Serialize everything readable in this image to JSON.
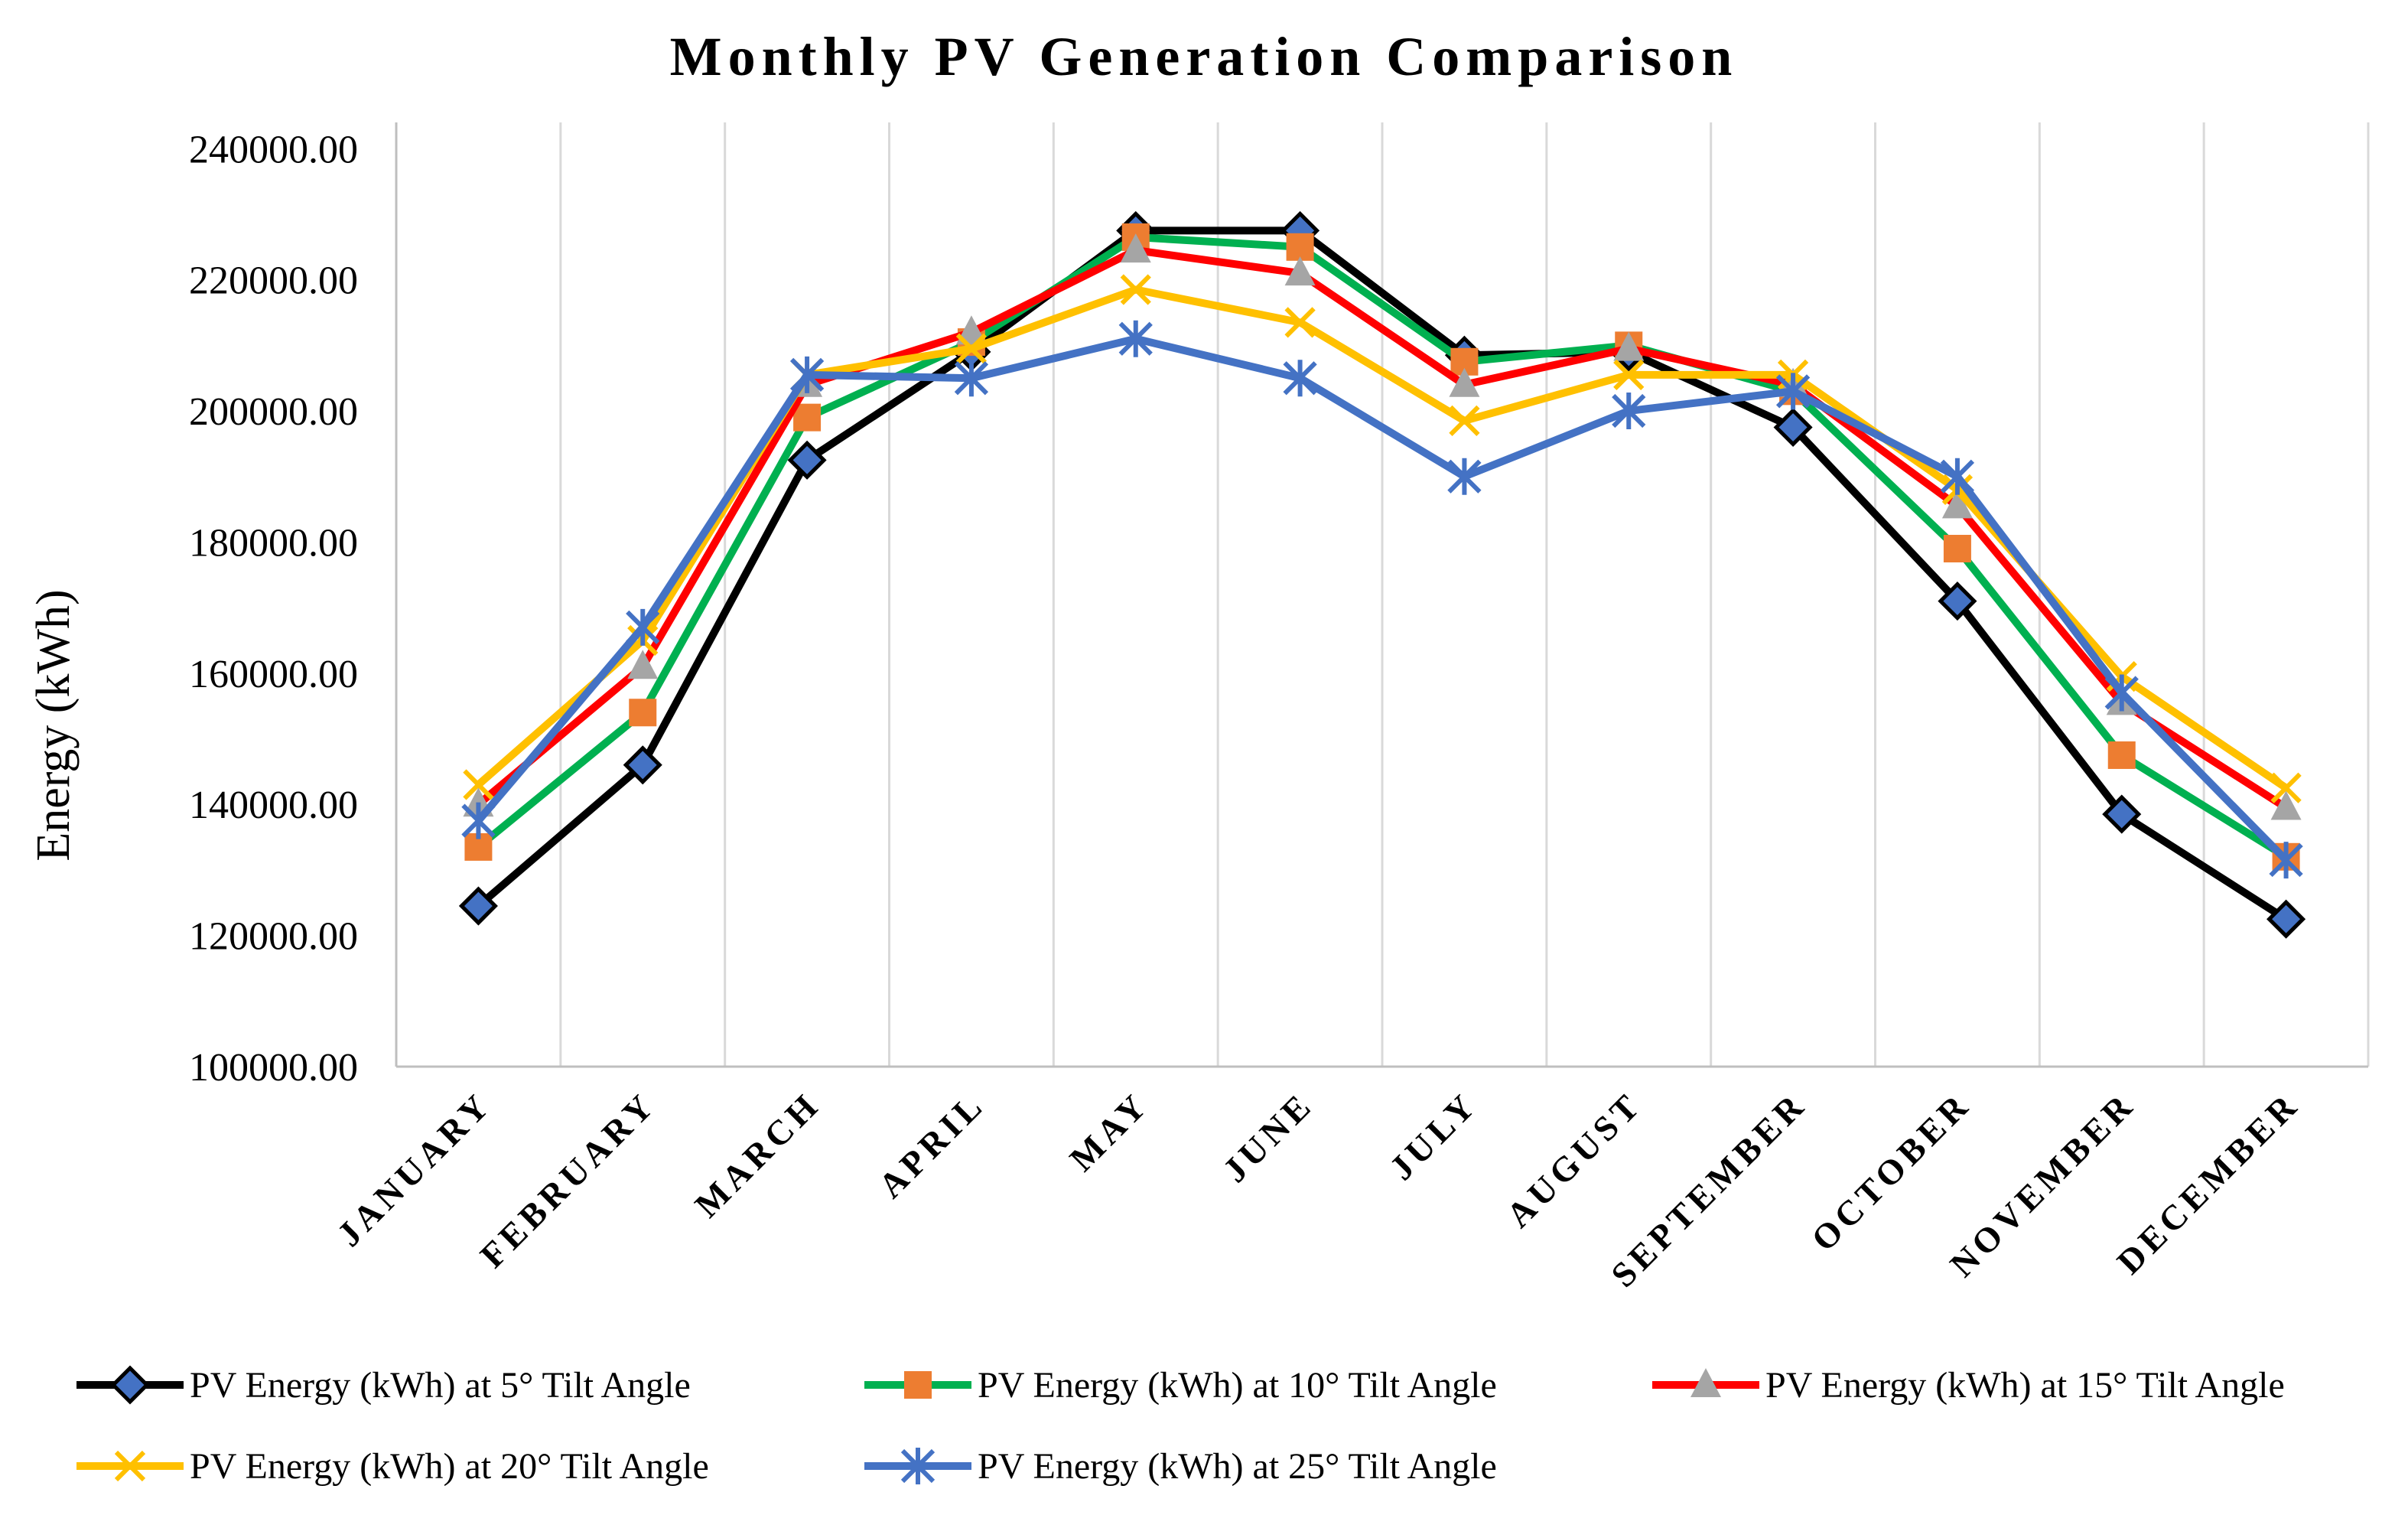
{
  "chart_data": {
    "type": "line",
    "title": "Monthly PV Generation Comparison",
    "xlabel": "",
    "ylabel": "Energy (kWh)",
    "ylim": [
      100000,
      240000
    ],
    "ytick_step": 20000,
    "ytick_labels": [
      "100000.00",
      "120000.00",
      "140000.00",
      "160000.00",
      "180000.00",
      "200000.00",
      "220000.00",
      "240000.00"
    ],
    "grid": "vertical",
    "legend_position": "bottom",
    "categories": [
      "JANUARY",
      "FEBRUARY",
      "MARCH",
      "APRIL",
      "MAY",
      "JUNE",
      "JULY",
      "AUGUST",
      "SEPTEMBER",
      "OCTOBER",
      "NOVEMBER",
      "DECEMBER"
    ],
    "series": [
      {
        "name": "PV Energy (kWh) at 5° Tilt Angle",
        "color": "#000000",
        "marker": "diamond",
        "values": [
          124500,
          146000,
          192500,
          209000,
          227500,
          227500,
          208500,
          209000,
          197500,
          171000,
          138500,
          122500
        ]
      },
      {
        "name": "PV Energy (kWh) at 10° Tilt Angle",
        "color": "#00b050",
        "marker": "square",
        "values": [
          133500,
          154000,
          199000,
          210500,
          226500,
          225000,
          207500,
          210000,
          203000,
          179000,
          147500,
          132000
        ]
      },
      {
        "name": "PV Energy (kWh) at 15° Tilt Angle",
        "color": "#ff0000",
        "marker": "triangle",
        "values": [
          140000,
          161000,
          204000,
          212000,
          224500,
          221000,
          204000,
          209500,
          204000,
          185500,
          155500,
          139500
        ]
      },
      {
        "name": "PV Energy (kWh) at 20° Tilt Angle",
        "color": "#ffc000",
        "marker": "x",
        "values": [
          143000,
          165000,
          205500,
          209500,
          218500,
          213500,
          198500,
          205500,
          205500,
          188000,
          159500,
          142500
        ]
      },
      {
        "name": "PV Energy (kWh) at 25° Tilt Angle",
        "color": "#4472c4",
        "marker": "star",
        "values": [
          137500,
          167000,
          205500,
          205000,
          211000,
          205000,
          190000,
          200000,
          203000,
          190000,
          157000,
          131500
        ]
      }
    ]
  }
}
